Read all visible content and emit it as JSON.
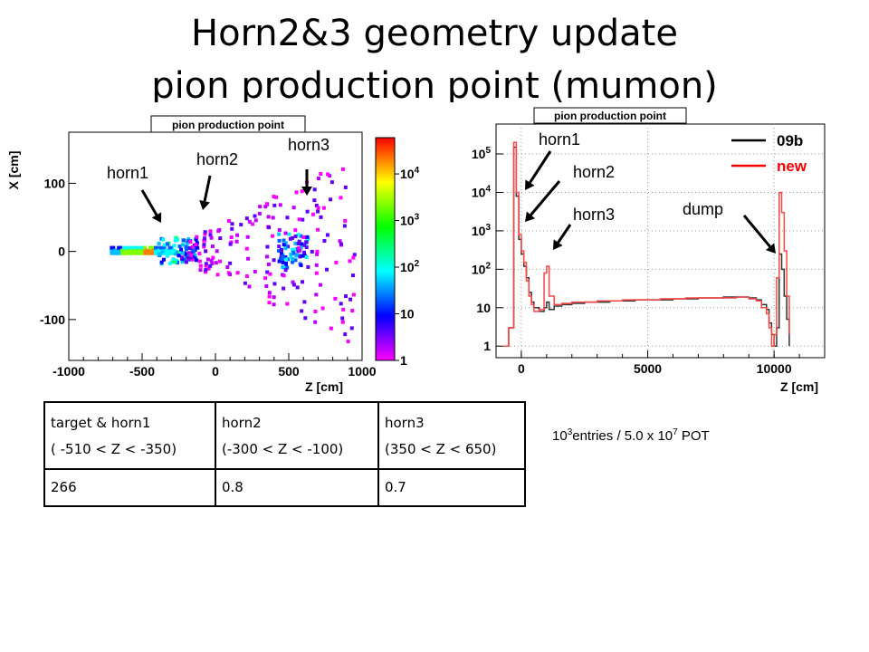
{
  "slide": {
    "title_line1": "Horn2&3 geometry update",
    "title_line2": "pion production point (mumon)"
  },
  "chart_data": [
    {
      "type": "heatmap",
      "title": "pion production point",
      "xlabel": "Z [cm]",
      "ylabel": "X [cm]",
      "xlim": [
        -1000,
        1000
      ],
      "ylim": [
        -160,
        175
      ],
      "x_ticks": [
        "-1000",
        "-500",
        "0",
        "500",
        "1000"
      ],
      "y_ticks": [
        "-100",
        "0",
        "100"
      ],
      "z_scale": "log",
      "zlim": [
        1,
        60000
      ],
      "z_ticks": [
        "1",
        "10",
        "10",
        "10",
        "10"
      ],
      "z_tick_exponents": [
        "",
        "",
        "2",
        "3",
        "4"
      ],
      "annotations": [
        "horn1",
        "horn2",
        "horn3"
      ],
      "colors": [
        "#ff0000",
        "#ffff00",
        "#00ff00",
        "#00ffff",
        "#0000ff",
        "#ff00ff"
      ]
    },
    {
      "type": "line",
      "title": "pion production point",
      "xlabel": "Z [cm]",
      "ylabel": "",
      "xlim": [
        -1000,
        12000
      ],
      "ylim": [
        0.5,
        600000
      ],
      "y_scale": "log",
      "grid": true,
      "x_ticks": [
        "0",
        "5000",
        "10000"
      ],
      "y_ticks": [
        "1",
        "10",
        "10",
        "10",
        "10",
        "10"
      ],
      "y_tick_exponents": [
        "",
        "",
        "2",
        "3",
        "4",
        "5"
      ],
      "legend_position": "top-right",
      "annotations": [
        "horn1",
        "horn2",
        "horn3",
        "dump"
      ],
      "series": [
        {
          "name": "09b",
          "color": "#333333",
          "points": [
            [
              -700,
              1
            ],
            [
              -500,
              3
            ],
            [
              -300,
              150000
            ],
            [
              -200,
              8000
            ],
            [
              -100,
              600
            ],
            [
              0,
              250
            ],
            [
              100,
              120
            ],
            [
              200,
              60
            ],
            [
              300,
              25
            ],
            [
              400,
              14
            ],
            [
              500,
              10
            ],
            [
              700,
              8
            ],
            [
              900,
              10
            ],
            [
              1000,
              14
            ],
            [
              1100,
              9
            ],
            [
              1300,
              11
            ],
            [
              1600,
              12
            ],
            [
              2000,
              13
            ],
            [
              2500,
              14
            ],
            [
              3000,
              14
            ],
            [
              3500,
              15
            ],
            [
              4000,
              15
            ],
            [
              4500,
              16
            ],
            [
              5000,
              16
            ],
            [
              5500,
              16
            ],
            [
              6000,
              17
            ],
            [
              6500,
              17
            ],
            [
              7000,
              18
            ],
            [
              7500,
              18
            ],
            [
              8000,
              19
            ],
            [
              8500,
              19
            ],
            [
              9000,
              18
            ],
            [
              9300,
              16
            ],
            [
              9500,
              12
            ],
            [
              9700,
              9
            ],
            [
              9800,
              4
            ],
            [
              9900,
              2
            ],
            [
              10000,
              1
            ],
            [
              10100,
              3
            ],
            [
              10200,
              250
            ],
            [
              10300,
              100
            ],
            [
              10400,
              20
            ],
            [
              10500,
              5
            ],
            [
              10600,
              1
            ]
          ]
        },
        {
          "name": "new",
          "color": "#ff4444",
          "points": [
            [
              -700,
              1
            ],
            [
              -500,
              3
            ],
            [
              -300,
              200000
            ],
            [
              -200,
              10000
            ],
            [
              -100,
              800
            ],
            [
              0,
              300
            ],
            [
              100,
              150
            ],
            [
              200,
              50
            ],
            [
              300,
              20
            ],
            [
              400,
              12
            ],
            [
              500,
              8
            ],
            [
              700,
              9
            ],
            [
              900,
              80
            ],
            [
              1000,
              120
            ],
            [
              1100,
              20
            ],
            [
              1300,
              12
            ],
            [
              1600,
              13
            ],
            [
              2000,
              14
            ],
            [
              2500,
              14
            ],
            [
              3000,
              15
            ],
            [
              3500,
              15
            ],
            [
              4000,
              16
            ],
            [
              4500,
              16
            ],
            [
              5000,
              16
            ],
            [
              5500,
              17
            ],
            [
              6000,
              17
            ],
            [
              6500,
              18
            ],
            [
              7000,
              18
            ],
            [
              7500,
              18
            ],
            [
              8000,
              18
            ],
            [
              8500,
              19
            ],
            [
              9000,
              17
            ],
            [
              9300,
              15
            ],
            [
              9500,
              10
            ],
            [
              9700,
              7
            ],
            [
              9800,
              3
            ],
            [
              9900,
              1
            ],
            [
              10000,
              2
            ],
            [
              10100,
              60
            ],
            [
              10200,
              10000
            ],
            [
              10300,
              3000
            ],
            [
              10400,
              300
            ],
            [
              10500,
              20
            ],
            [
              10600,
              2
            ]
          ]
        }
      ]
    }
  ],
  "table": {
    "headers": [
      [
        "target & horn1",
        "( -510 < Z < -350)"
      ],
      [
        "horn2",
        "(-300 < Z < -100)"
      ],
      [
        "horn3",
        "(350 < Z < 650)"
      ]
    ],
    "values": [
      "266",
      "0.8",
      "0.7"
    ]
  },
  "note": {
    "base": "10",
    "exp1": "3",
    "text1": "entries / 5.0 x 10",
    "exp2": "7",
    "text2": " POT"
  }
}
